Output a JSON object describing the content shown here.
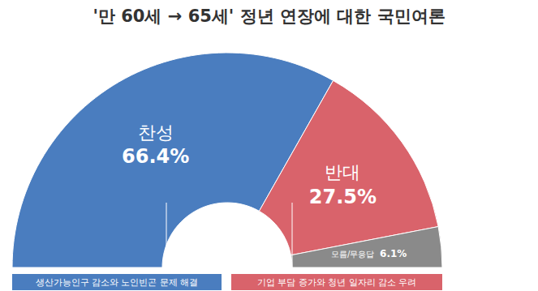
{
  "chart_data": {
    "type": "pie",
    "title": "'만 60세 → 65세' 정년 연장에 대한 국민여론",
    "categories": [
      "찬성",
      "반대",
      "모름/무응답"
    ],
    "values": [
      66.4,
      27.5,
      6.1
    ],
    "value_labels": [
      "66.4%",
      "27.5%",
      "6.1%"
    ],
    "colors": [
      "#4a7dbf",
      "#d9636b",
      "#8a8a8a"
    ],
    "data_labels": true,
    "annotations": [
      "생산가능인구 감소와 노인빈곤 문제 해결",
      "기업 부담 증가와 청년 일자리 감소 우려"
    ]
  }
}
